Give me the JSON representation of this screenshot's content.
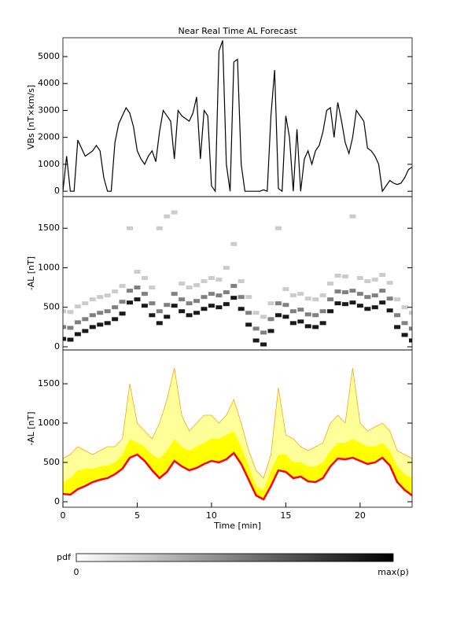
{
  "chart_data": [
    {
      "type": "line",
      "title": "Near Real Time AL Forecast",
      "y_label": "VBs [nT×km/s]",
      "color": "#000000",
      "xlim": [
        0,
        23.5
      ],
      "ylim": [
        -200,
        5700
      ],
      "yticks": [
        0,
        1000,
        2000,
        3000,
        4000,
        5000
      ],
      "x": [
        0,
        0.25,
        0.5,
        0.75,
        1,
        1.25,
        1.5,
        1.75,
        2,
        2.25,
        2.5,
        2.75,
        3,
        3.25,
        3.5,
        3.75,
        4,
        4.25,
        4.5,
        4.75,
        5,
        5.25,
        5.5,
        5.75,
        6,
        6.25,
        6.5,
        6.75,
        7,
        7.25,
        7.5,
        7.75,
        8,
        8.25,
        8.5,
        8.75,
        9,
        9.25,
        9.5,
        9.75,
        10,
        10.25,
        10.5,
        10.75,
        11,
        11.25,
        11.5,
        11.75,
        12,
        12.25,
        12.5,
        12.75,
        13,
        13.25,
        13.5,
        13.75,
        14,
        14.25,
        14.5,
        14.75,
        15,
        15.25,
        15.5,
        15.75,
        16,
        16.25,
        16.5,
        16.75,
        17,
        17.25,
        17.5,
        17.75,
        18,
        18.25,
        18.5,
        18.75,
        19,
        19.25,
        19.5,
        19.75,
        20,
        20.25,
        20.5,
        20.75,
        21,
        21.25,
        21.5,
        21.75,
        22,
        22.25,
        22.5,
        22.75,
        23,
        23.25,
        23.5
      ],
      "y": [
        0,
        1300,
        0,
        0,
        1900,
        1600,
        1300,
        1400,
        1500,
        1700,
        1500,
        500,
        0,
        0,
        1800,
        2500,
        2800,
        3100,
        2900,
        2400,
        1500,
        1200,
        1000,
        1300,
        1500,
        1100,
        2200,
        3000,
        2800,
        2600,
        1200,
        3000,
        2800,
        2700,
        2600,
        2900,
        3500,
        1200,
        3000,
        2800,
        200,
        0,
        5200,
        5600,
        1000,
        0,
        4800,
        4900,
        1000,
        0,
        0,
        0,
        0,
        0,
        50,
        0,
        2800,
        4500,
        100,
        0,
        2800,
        2000,
        0,
        2300,
        0,
        1200,
        1500,
        1000,
        1500,
        1700,
        2200,
        3000,
        3100,
        2000,
        3300,
        2600,
        1800,
        1400,
        2000,
        3000,
        2800,
        2600,
        1600,
        1500,
        1300,
        1000,
        0,
        200,
        400,
        300,
        250,
        300,
        500,
        800,
        900
      ]
    },
    {
      "type": "heatmap",
      "y_label": "-AL [nT]",
      "xlim": [
        0,
        23.5
      ],
      "ylim": [
        -40,
        1900
      ],
      "yticks": [
        0,
        500,
        1000,
        1500
      ],
      "x": [
        0,
        0.5,
        1,
        1.5,
        2,
        2.5,
        3,
        3.5,
        4,
        4.5,
        5,
        5.5,
        6,
        6.5,
        7,
        7.5,
        8,
        8.5,
        9,
        9.5,
        10,
        10.5,
        11,
        11.5,
        12,
        12.5,
        13,
        13.5,
        14,
        14.5,
        15,
        15.5,
        16,
        16.5,
        17,
        17.5,
        18,
        18.5,
        19,
        19.5,
        20,
        20.5,
        21,
        21.5,
        22,
        22.5,
        23,
        23.5
      ],
      "layers": [
        {
          "intensity": 0.9,
          "values": [
            100,
            90,
            160,
            200,
            250,
            280,
            300,
            350,
            420,
            560,
            600,
            520,
            400,
            300,
            380,
            520,
            450,
            400,
            430,
            480,
            520,
            500,
            540,
            620,
            480,
            280,
            80,
            30,
            200,
            400,
            380,
            300,
            320,
            260,
            250,
            300,
            450,
            550,
            540,
            560,
            520,
            480,
            500,
            560,
            460,
            250,
            150,
            80
          ]
        },
        {
          "intensity": 0.5,
          "values": [
            250,
            240,
            310,
            350,
            400,
            430,
            450,
            500,
            570,
            710,
            750,
            670,
            550,
            450,
            530,
            670,
            600,
            550,
            580,
            630,
            670,
            650,
            690,
            770,
            630,
            430,
            230,
            180,
            350,
            550,
            530,
            450,
            470,
            410,
            400,
            450,
            600,
            700,
            690,
            710,
            670,
            630,
            650,
            710,
            610,
            400,
            300,
            230
          ]
        },
        {
          "intensity": 0.2,
          "values": [
            450,
            440,
            510,
            550,
            600,
            630,
            650,
            700,
            770,
            1500,
            950,
            870,
            750,
            1500,
            1650,
            1700,
            800,
            750,
            780,
            830,
            870,
            850,
            1000,
            1300,
            830,
            630,
            430,
            380,
            550,
            1500,
            730,
            650,
            670,
            610,
            600,
            650,
            800,
            900,
            890,
            1650,
            870,
            830,
            850,
            910,
            810,
            600,
            500,
            430
          ]
        }
      ]
    },
    {
      "type": "band",
      "y_label": "-AL [nT]",
      "x_label": "Time [min]",
      "xlim": [
        0,
        23.5
      ],
      "ylim": [
        -70,
        1930
      ],
      "yticks": [
        0,
        500,
        1000,
        1500
      ],
      "xticks": [
        0,
        5,
        10,
        15,
        20
      ],
      "x": [
        0,
        0.5,
        1,
        1.5,
        2,
        2.5,
        3,
        3.5,
        4,
        4.5,
        5,
        5.5,
        6,
        6.5,
        7,
        7.5,
        8,
        8.5,
        9,
        9.5,
        10,
        10.5,
        11,
        11.5,
        12,
        12.5,
        13,
        13.5,
        14,
        14.5,
        15,
        15.5,
        16,
        16.5,
        17,
        17.5,
        18,
        18.5,
        19,
        19.5,
        20,
        20.5,
        21,
        21.5,
        22,
        22.5,
        23,
        23.5
      ],
      "outer": {
        "color": "#ffff99",
        "edge": "#f5a623",
        "values": [
          550,
          600,
          700,
          650,
          600,
          650,
          700,
          700,
          800,
          1500,
          1000,
          900,
          800,
          1000,
          1300,
          1700,
          1100,
          900,
          1000,
          1100,
          1100,
          1000,
          1100,
          1300,
          1000,
          650,
          400,
          300,
          600,
          1450,
          850,
          800,
          700,
          650,
          700,
          750,
          1000,
          1100,
          1000,
          1700,
          1000,
          900,
          950,
          1000,
          900,
          650,
          600,
          550
        ]
      },
      "inner": {
        "color": "#ffff00",
        "values": [
          250,
          300,
          400,
          420,
          420,
          450,
          460,
          500,
          600,
          800,
          750,
          700,
          600,
          550,
          650,
          800,
          700,
          650,
          700,
          750,
          800,
          800,
          850,
          900,
          700,
          450,
          200,
          150,
          400,
          600,
          600,
          500,
          500,
          450,
          450,
          500,
          650,
          750,
          750,
          800,
          750,
          700,
          700,
          750,
          650,
          450,
          350,
          300
        ]
      },
      "median": {
        "color": "#ff0000",
        "values": [
          100,
          90,
          160,
          200,
          250,
          280,
          300,
          350,
          420,
          560,
          600,
          520,
          400,
          300,
          380,
          520,
          450,
          400,
          430,
          480,
          520,
          500,
          540,
          620,
          480,
          280,
          80,
          30,
          200,
          400,
          380,
          300,
          320,
          260,
          250,
          300,
          450,
          550,
          540,
          560,
          520,
          480,
          500,
          560,
          460,
          250,
          150,
          80
        ]
      }
    }
  ],
  "colorbar": {
    "label": "pdf",
    "min_label": "0",
    "max_label": "max(p)"
  }
}
